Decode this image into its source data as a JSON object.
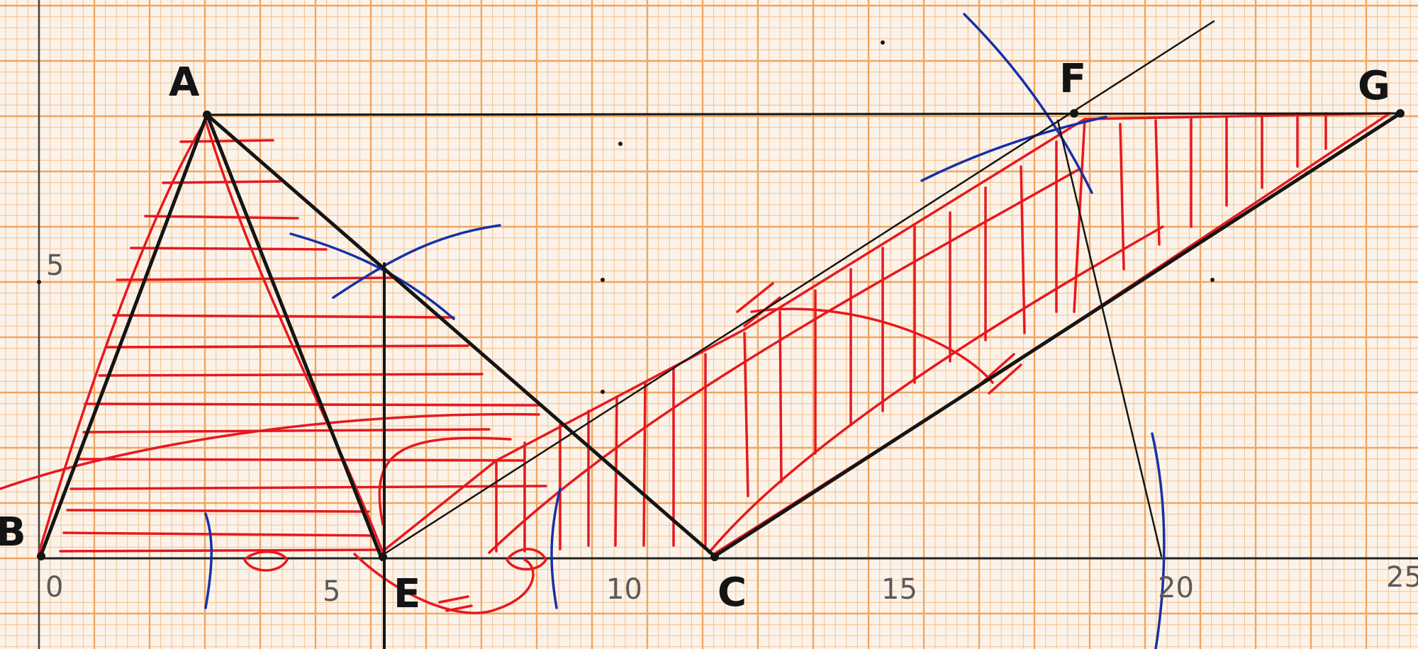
{
  "points": {
    "A": "A",
    "B": "B",
    "C": "C",
    "E": "E",
    "F": "F",
    "G": "G"
  },
  "axis_numbers": {
    "x0": "0",
    "x5": "5",
    "x10": "10",
    "x15": "15",
    "x20": "20",
    "x25": "25",
    "y5": "5"
  },
  "colors": {
    "paper": "#fbf3ea",
    "grid_minor": "#f6c79a",
    "grid_major": "#f2a35f",
    "ink_black": "#151515",
    "ink_red": "#e8181e",
    "ink_blue": "#1531a8"
  }
}
